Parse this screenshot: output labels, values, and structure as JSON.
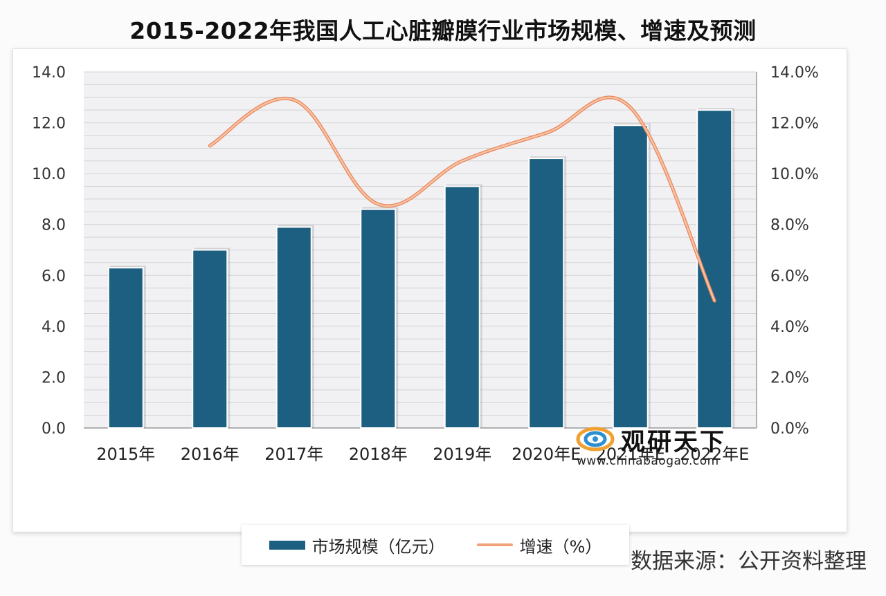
{
  "title": "2015-2022年我国人工心脏瓣膜行业市场规模、增速及预测",
  "source": "数据来源：公开资料整理",
  "watermark": {
    "name": "观研天下",
    "url": "www.chinabaogao.com"
  },
  "colors": {
    "bar": "#1d5f80",
    "line": "#f2a27a",
    "line_edge": "#e8855a",
    "grid": "#d3d3d3",
    "plot_bg": "#f1f1f4"
  },
  "chart_data": {
    "type": "bar",
    "categories": [
      "2015年",
      "2016年",
      "2017年",
      "2018年",
      "2019年",
      "2020年E",
      "2021年E",
      "2022年E"
    ],
    "series": [
      {
        "name": "市场规模（亿元）",
        "type": "bar",
        "axis": "left",
        "values": [
          6.3,
          7.0,
          7.9,
          8.6,
          9.5,
          10.6,
          11.9,
          12.5
        ]
      },
      {
        "name": "增速（%）",
        "type": "line",
        "axis": "right",
        "values": [
          null,
          11.1,
          12.9,
          8.8,
          10.5,
          11.6,
          12.6,
          5.0
        ]
      }
    ],
    "ylim_left": [
      0,
      14
    ],
    "yticks_left": [
      "0.0",
      "2.0",
      "4.0",
      "6.0",
      "8.0",
      "10.0",
      "12.0",
      "14.0"
    ],
    "ylim_right": [
      0,
      14
    ],
    "yticks_right": [
      "0.0%",
      "2.0%",
      "4.0%",
      "6.0%",
      "8.0%",
      "10.0%",
      "12.0%",
      "14.0%"
    ],
    "grid": true,
    "legend": "bottom"
  }
}
